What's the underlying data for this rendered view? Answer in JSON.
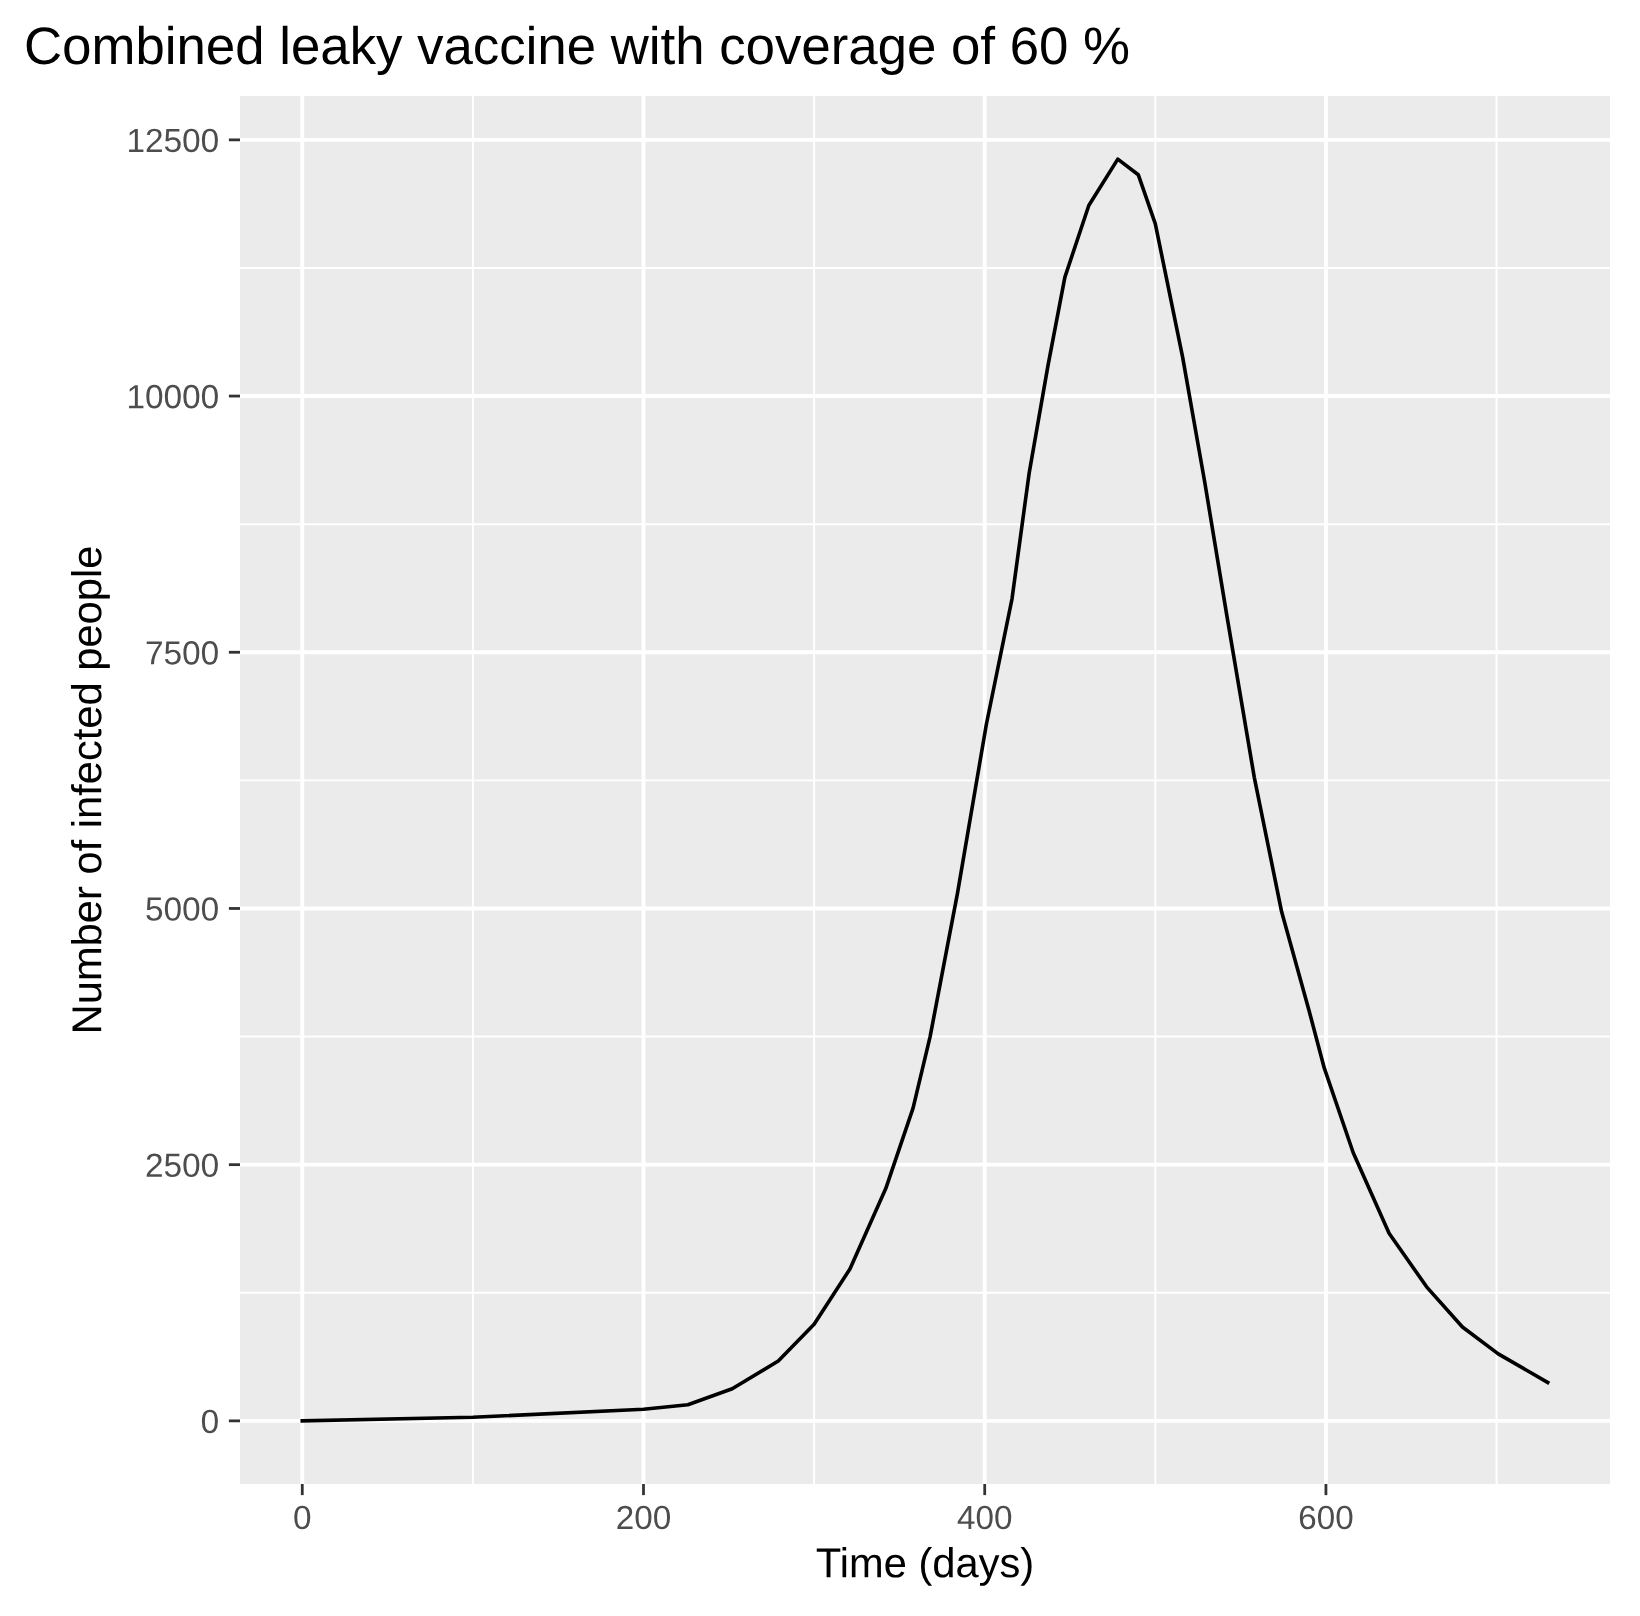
{
  "chart_data": {
    "type": "line",
    "title": "Combined leaky vaccine with coverage of 60 %",
    "xlabel": "Time (days)",
    "ylabel": "Number of infected people",
    "x": [
      0,
      100,
      200,
      226,
      252,
      279,
      300,
      321,
      342,
      358,
      368,
      384,
      401,
      416,
      426,
      437,
      447,
      461,
      478,
      490,
      500,
      516,
      529,
      542,
      558,
      574,
      590,
      599,
      616,
      637,
      659,
      680,
      701,
      730
    ],
    "series": [
      {
        "color": "#000000",
        "values": [
          0,
          35,
          113,
          157,
          314,
          584,
          942,
          1482,
          2267,
          3052,
          3750,
          5145,
          6800,
          8022,
          9243,
          10290,
          11160,
          11860,
          12312,
          12160,
          11680,
          10380,
          9156,
          7850,
          6280,
          4970,
          4010,
          3444,
          2616,
          1831,
          1308,
          916,
          654,
          375
        ]
      }
    ],
    "xlim": [
      -36.5,
      766.5
    ],
    "ylim": [
      -616,
      12928
    ],
    "xticks": [
      0,
      200,
      400,
      600
    ],
    "yticks": [
      0,
      2500,
      5000,
      7500,
      10000,
      12500
    ],
    "grid": true,
    "legend": false,
    "marker": "none",
    "line_style": "solid"
  }
}
